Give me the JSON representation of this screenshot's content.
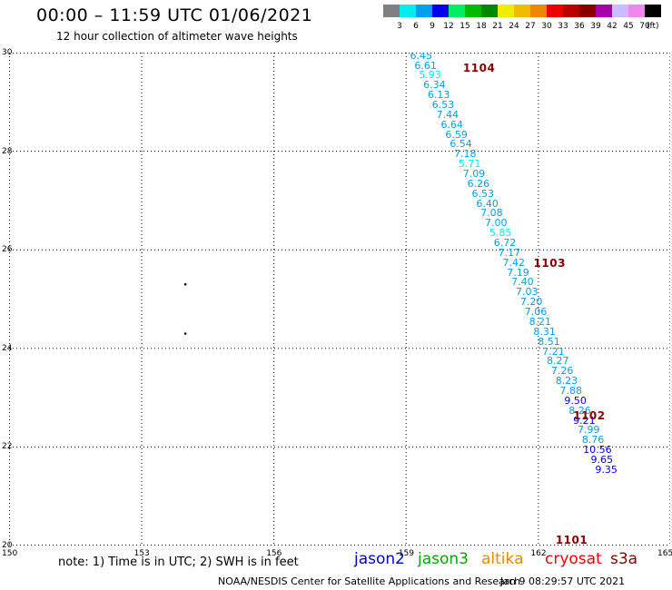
{
  "header": {
    "title": "00:00 – 11:59 UTC 01/06/2021",
    "subtitle": "12 hour collection of altimeter wave heights"
  },
  "legend": {
    "unit": "(ft)",
    "entries": [
      {
        "label": "3",
        "color": "#808080"
      },
      {
        "label": "6",
        "color": "#00eeee"
      },
      {
        "label": "9",
        "color": "#00a0ee"
      },
      {
        "label": "12",
        "color": "#0000ee"
      },
      {
        "label": "15",
        "color": "#00ee66"
      },
      {
        "label": "18",
        "color": "#00bb00"
      },
      {
        "label": "21",
        "color": "#008800"
      },
      {
        "label": "24",
        "color": "#eeee00"
      },
      {
        "label": "27",
        "color": "#eebb00"
      },
      {
        "label": "30",
        "color": "#ee8800"
      },
      {
        "label": "33",
        "color": "#ee0000"
      },
      {
        "label": "36",
        "color": "#bb0000"
      },
      {
        "label": "39",
        "color": "#880000"
      },
      {
        "label": "42",
        "color": "#aa00aa"
      },
      {
        "label": "45",
        "color": "#ccbbff"
      },
      {
        "label": "70",
        "color": "#ee88ee"
      },
      {
        "label": "",
        "color": "#000000"
      }
    ]
  },
  "map": {
    "lon_ticks": [
      "150",
      "153",
      "156",
      "159",
      "162",
      "165"
    ],
    "lat_ticks": [
      "20",
      "22",
      "24",
      "26",
      "28",
      "30"
    ]
  },
  "chart_data": {
    "type": "scatter",
    "xlim": [
      150,
      165
    ],
    "ylim": [
      20,
      30
    ],
    "grid": true,
    "x_ticks": [
      150,
      153,
      156,
      159,
      162,
      165
    ],
    "y_ticks": [
      20,
      22,
      24,
      26,
      28,
      30
    ],
    "passes": [
      {
        "label": "1104",
        "lon": 160.3,
        "lat": 29.7
      },
      {
        "label": "1103",
        "lon": 161.9,
        "lat": 25.75
      },
      {
        "label": "1102",
        "lon": 162.8,
        "lat": 22.65
      },
      {
        "label": "1101",
        "lon": 162.4,
        "lat": 20.0
      }
    ],
    "islands": [
      {
        "lon": 154.0,
        "lat": 25.3
      },
      {
        "lon": 154.0,
        "lat": 24.3
      }
    ],
    "points": [
      {
        "lon": 159.35,
        "lat": 29.95,
        "swh": "6.45",
        "color": "#00a0ee"
      },
      {
        "lon": 159.45,
        "lat": 29.75,
        "swh": "6.61",
        "color": "#00a0ee"
      },
      {
        "lon": 159.55,
        "lat": 29.55,
        "swh": "5.93",
        "color": "#00eeee"
      },
      {
        "lon": 159.65,
        "lat": 29.35,
        "swh": "6.34",
        "color": "#00a0ee"
      },
      {
        "lon": 159.75,
        "lat": 29.15,
        "swh": "6.13",
        "color": "#00a0ee"
      },
      {
        "lon": 159.85,
        "lat": 28.95,
        "swh": "6.53",
        "color": "#00a0ee"
      },
      {
        "lon": 159.95,
        "lat": 28.75,
        "swh": "7.44",
        "color": "#00a0ee"
      },
      {
        "lon": 160.05,
        "lat": 28.55,
        "swh": "6.64",
        "color": "#00a0ee"
      },
      {
        "lon": 160.15,
        "lat": 28.35,
        "swh": "6.59",
        "color": "#00a0ee"
      },
      {
        "lon": 160.25,
        "lat": 28.15,
        "swh": "6.54",
        "color": "#00a0ee"
      },
      {
        "lon": 160.35,
        "lat": 27.95,
        "swh": "7.18",
        "color": "#00a0ee"
      },
      {
        "lon": 160.45,
        "lat": 27.75,
        "swh": "5.71",
        "color": "#00eeee"
      },
      {
        "lon": 160.55,
        "lat": 27.55,
        "swh": "7.09",
        "color": "#00a0ee"
      },
      {
        "lon": 160.65,
        "lat": 27.35,
        "swh": "6.26",
        "color": "#00a0ee"
      },
      {
        "lon": 160.75,
        "lat": 27.15,
        "swh": "6.53",
        "color": "#00a0ee"
      },
      {
        "lon": 160.85,
        "lat": 26.95,
        "swh": "6.40",
        "color": "#00a0ee"
      },
      {
        "lon": 160.95,
        "lat": 26.75,
        "swh": "7.08",
        "color": "#00a0ee"
      },
      {
        "lon": 161.05,
        "lat": 26.55,
        "swh": "7.00",
        "color": "#00a0ee"
      },
      {
        "lon": 161.15,
        "lat": 26.35,
        "swh": "5.85",
        "color": "#00eeee"
      },
      {
        "lon": 161.25,
        "lat": 26.15,
        "swh": "6.72",
        "color": "#00a0ee"
      },
      {
        "lon": 161.35,
        "lat": 25.95,
        "swh": "7.17",
        "color": "#00a0ee"
      },
      {
        "lon": 161.45,
        "lat": 25.75,
        "swh": "7.42",
        "color": "#00a0ee"
      },
      {
        "lon": 161.55,
        "lat": 25.55,
        "swh": "7.19",
        "color": "#00a0ee"
      },
      {
        "lon": 161.65,
        "lat": 25.35,
        "swh": "7.40",
        "color": "#00a0ee"
      },
      {
        "lon": 161.75,
        "lat": 25.15,
        "swh": "7.03",
        "color": "#00a0ee"
      },
      {
        "lon": 161.85,
        "lat": 24.95,
        "swh": "7.20",
        "color": "#00a0ee"
      },
      {
        "lon": 161.95,
        "lat": 24.75,
        "swh": "7.06",
        "color": "#00a0ee"
      },
      {
        "lon": 162.05,
        "lat": 24.55,
        "swh": "8.21",
        "color": "#00a0ee"
      },
      {
        "lon": 162.15,
        "lat": 24.35,
        "swh": "8.31",
        "color": "#00a0ee"
      },
      {
        "lon": 162.25,
        "lat": 24.15,
        "swh": "8.51",
        "color": "#00a0ee"
      },
      {
        "lon": 162.35,
        "lat": 23.95,
        "swh": "7.21",
        "color": "#00a0ee"
      },
      {
        "lon": 162.45,
        "lat": 23.75,
        "swh": "8.27",
        "color": "#00a0ee"
      },
      {
        "lon": 162.55,
        "lat": 23.55,
        "swh": "7.26",
        "color": "#00a0ee"
      },
      {
        "lon": 162.65,
        "lat": 23.35,
        "swh": "8.23",
        "color": "#00a0ee"
      },
      {
        "lon": 162.75,
        "lat": 23.15,
        "swh": "7.88",
        "color": "#00a0ee"
      },
      {
        "lon": 162.85,
        "lat": 22.95,
        "swh": "9.50",
        "color": "#0000ee"
      },
      {
        "lon": 162.95,
        "lat": 22.75,
        "swh": "8.26",
        "color": "#00a0ee"
      },
      {
        "lon": 163.05,
        "lat": 22.55,
        "swh": "9.21",
        "color": "#0000ee"
      },
      {
        "lon": 163.15,
        "lat": 22.35,
        "swh": "7.99",
        "color": "#00a0ee"
      },
      {
        "lon": 163.25,
        "lat": 22.15,
        "swh": "8.76",
        "color": "#00a0ee"
      },
      {
        "lon": 163.35,
        "lat": 21.95,
        "swh": "10.56",
        "color": "#0000ee"
      },
      {
        "lon": 163.45,
        "lat": 21.75,
        "swh": "9.65",
        "color": "#0000ee"
      },
      {
        "lon": 163.55,
        "lat": 21.55,
        "swh": "9.35",
        "color": "#0000ee"
      }
    ]
  },
  "note": "note:  1) Time is in UTC;  2) SWH is in feet",
  "satellites": [
    {
      "name": "jason2",
      "color": "#0000cc"
    },
    {
      "name": "jason3",
      "color": "#00aa00"
    },
    {
      "name": "altika",
      "color": "#ee8800"
    },
    {
      "name": "cryosat",
      "color": "#ee0000"
    },
    {
      "name": "s3a",
      "color": "#880000"
    }
  ],
  "footer": {
    "credit": "NOAA/NESDIS Center for Satellite Applications and Research",
    "timestamp": "Jan  9 08:29:57 UTC 2021"
  }
}
